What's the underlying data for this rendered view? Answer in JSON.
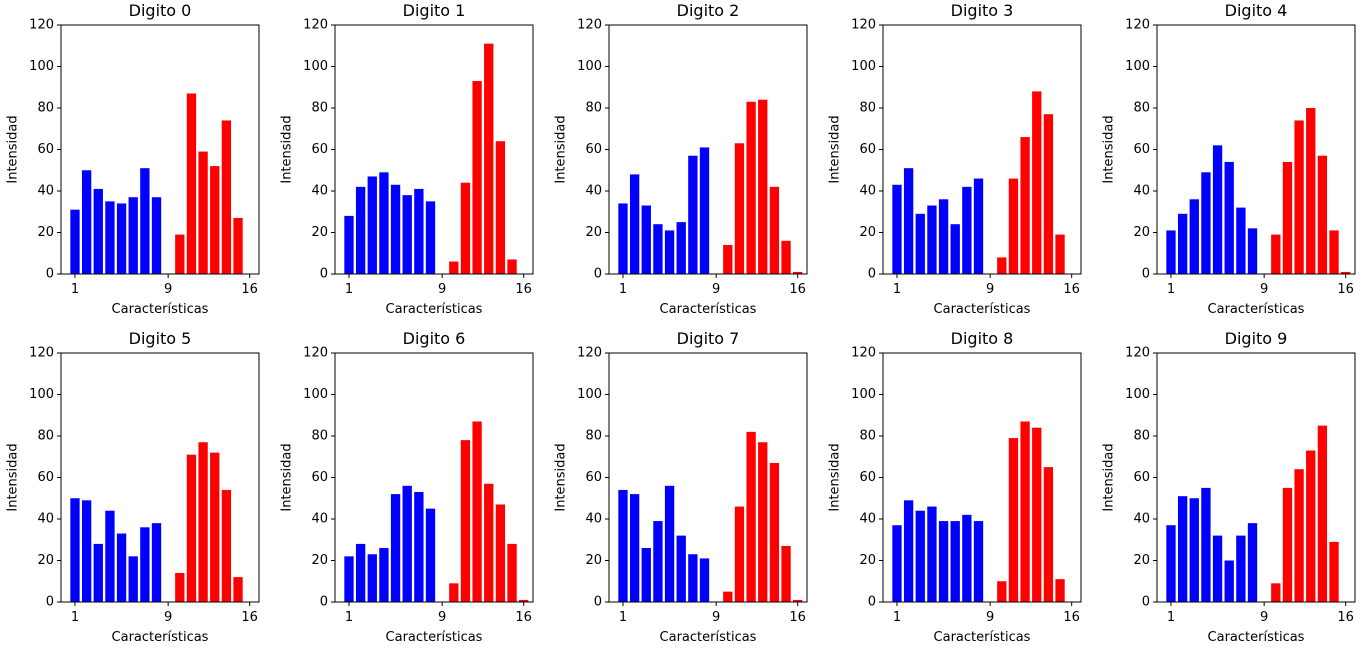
{
  "chart_data": [
    {
      "type": "bar",
      "title": "Digito 0",
      "xlabel": "Características",
      "ylabel": "Intensidad",
      "ylim": [
        0,
        120
      ],
      "x_ticks": [
        "1",
        "9",
        "16"
      ],
      "y_ticks": [
        "0",
        "20",
        "40",
        "60",
        "80",
        "100",
        "120"
      ],
      "categories": [
        1,
        2,
        3,
        4,
        5,
        6,
        7,
        8,
        9,
        10,
        11,
        12,
        13,
        14,
        15,
        16
      ],
      "values": [
        31,
        50,
        41,
        35,
        34,
        37,
        51,
        37,
        0,
        19,
        87,
        59,
        52,
        74,
        27,
        0
      ]
    },
    {
      "type": "bar",
      "title": "Digito 1",
      "xlabel": "Características",
      "ylabel": "Intensidad",
      "ylim": [
        0,
        120
      ],
      "x_ticks": [
        "1",
        "9",
        "16"
      ],
      "y_ticks": [
        "0",
        "20",
        "40",
        "60",
        "80",
        "100",
        "120"
      ],
      "categories": [
        1,
        2,
        3,
        4,
        5,
        6,
        7,
        8,
        9,
        10,
        11,
        12,
        13,
        14,
        15,
        16
      ],
      "values": [
        28,
        42,
        47,
        49,
        43,
        38,
        41,
        35,
        0,
        6,
        44,
        93,
        111,
        64,
        7,
        0
      ]
    },
    {
      "type": "bar",
      "title": "Digito 2",
      "xlabel": "Características",
      "ylabel": "Intensidad",
      "ylim": [
        0,
        120
      ],
      "x_ticks": [
        "1",
        "9",
        "16"
      ],
      "y_ticks": [
        "0",
        "20",
        "40",
        "60",
        "80",
        "100",
        "120"
      ],
      "categories": [
        1,
        2,
        3,
        4,
        5,
        6,
        7,
        8,
        9,
        10,
        11,
        12,
        13,
        14,
        15,
        16
      ],
      "values": [
        34,
        48,
        33,
        24,
        21,
        25,
        57,
        61,
        0,
        14,
        63,
        83,
        84,
        42,
        16,
        1
      ]
    },
    {
      "type": "bar",
      "title": "Digito 3",
      "xlabel": "Características",
      "ylabel": "Intensidad",
      "ylim": [
        0,
        120
      ],
      "x_ticks": [
        "1",
        "9",
        "16"
      ],
      "y_ticks": [
        "0",
        "20",
        "40",
        "60",
        "80",
        "100",
        "120"
      ],
      "categories": [
        1,
        2,
        3,
        4,
        5,
        6,
        7,
        8,
        9,
        10,
        11,
        12,
        13,
        14,
        15,
        16
      ],
      "values": [
        43,
        51,
        29,
        33,
        36,
        24,
        42,
        46,
        0,
        8,
        46,
        66,
        88,
        77,
        19,
        0
      ]
    },
    {
      "type": "bar",
      "title": "Digito 4",
      "xlabel": "Características",
      "ylabel": "Intensidad",
      "ylim": [
        0,
        120
      ],
      "x_ticks": [
        "1",
        "9",
        "16"
      ],
      "y_ticks": [
        "0",
        "20",
        "40",
        "60",
        "80",
        "100",
        "120"
      ],
      "categories": [
        1,
        2,
        3,
        4,
        5,
        6,
        7,
        8,
        9,
        10,
        11,
        12,
        13,
        14,
        15,
        16
      ],
      "values": [
        21,
        29,
        36,
        49,
        62,
        54,
        32,
        22,
        0,
        19,
        54,
        74,
        80,
        57,
        21,
        1
      ]
    },
    {
      "type": "bar",
      "title": "Digito 5",
      "xlabel": "Características",
      "ylabel": "Intensidad",
      "ylim": [
        0,
        120
      ],
      "x_ticks": [
        "1",
        "9",
        "16"
      ],
      "y_ticks": [
        "0",
        "20",
        "40",
        "60",
        "80",
        "100",
        "120"
      ],
      "categories": [
        1,
        2,
        3,
        4,
        5,
        6,
        7,
        8,
        9,
        10,
        11,
        12,
        13,
        14,
        15,
        16
      ],
      "values": [
        50,
        49,
        28,
        44,
        33,
        22,
        36,
        38,
        0,
        14,
        71,
        77,
        72,
        54,
        12,
        0
      ]
    },
    {
      "type": "bar",
      "title": "Digito 6",
      "xlabel": "Características",
      "ylabel": "Intensidad",
      "ylim": [
        0,
        120
      ],
      "x_ticks": [
        "1",
        "9",
        "16"
      ],
      "y_ticks": [
        "0",
        "20",
        "40",
        "60",
        "80",
        "100",
        "120"
      ],
      "categories": [
        1,
        2,
        3,
        4,
        5,
        6,
        7,
        8,
        9,
        10,
        11,
        12,
        13,
        14,
        15,
        16
      ],
      "values": [
        22,
        28,
        23,
        26,
        52,
        56,
        53,
        45,
        0,
        9,
        78,
        87,
        57,
        47,
        28,
        1
      ]
    },
    {
      "type": "bar",
      "title": "Digito 7",
      "xlabel": "Características",
      "ylabel": "Intensidad",
      "ylim": [
        0,
        120
      ],
      "x_ticks": [
        "1",
        "9",
        "16"
      ],
      "y_ticks": [
        "0",
        "20",
        "40",
        "60",
        "80",
        "100",
        "120"
      ],
      "categories": [
        1,
        2,
        3,
        4,
        5,
        6,
        7,
        8,
        9,
        10,
        11,
        12,
        13,
        14,
        15,
        16
      ],
      "values": [
        54,
        52,
        26,
        39,
        56,
        32,
        23,
        21,
        0,
        5,
        46,
        82,
        77,
        67,
        27,
        1
      ]
    },
    {
      "type": "bar",
      "title": "Digito 8",
      "xlabel": "Características",
      "ylabel": "Intensidad",
      "ylim": [
        0,
        120
      ],
      "x_ticks": [
        "1",
        "9",
        "16"
      ],
      "y_ticks": [
        "0",
        "20",
        "40",
        "60",
        "80",
        "100",
        "120"
      ],
      "categories": [
        1,
        2,
        3,
        4,
        5,
        6,
        7,
        8,
        9,
        10,
        11,
        12,
        13,
        14,
        15,
        16
      ],
      "values": [
        37,
        49,
        44,
        46,
        39,
        39,
        42,
        39,
        0,
        10,
        79,
        87,
        84,
        65,
        11,
        0
      ]
    },
    {
      "type": "bar",
      "title": "Digito 9",
      "xlabel": "Características",
      "ylabel": "Intensidad",
      "ylim": [
        0,
        120
      ],
      "x_ticks": [
        "1",
        "9",
        "16"
      ],
      "y_ticks": [
        "0",
        "20",
        "40",
        "60",
        "80",
        "100",
        "120"
      ],
      "categories": [
        1,
        2,
        3,
        4,
        5,
        6,
        7,
        8,
        9,
        10,
        11,
        12,
        13,
        14,
        15,
        16
      ],
      "values": [
        37,
        51,
        50,
        55,
        32,
        20,
        32,
        38,
        0,
        9,
        55,
        64,
        73,
        85,
        29,
        0
      ]
    }
  ],
  "colors": {
    "first_half": "#0000ff",
    "second_half": "#ff0000",
    "axes": "#000000",
    "background": "#ffffff"
  }
}
